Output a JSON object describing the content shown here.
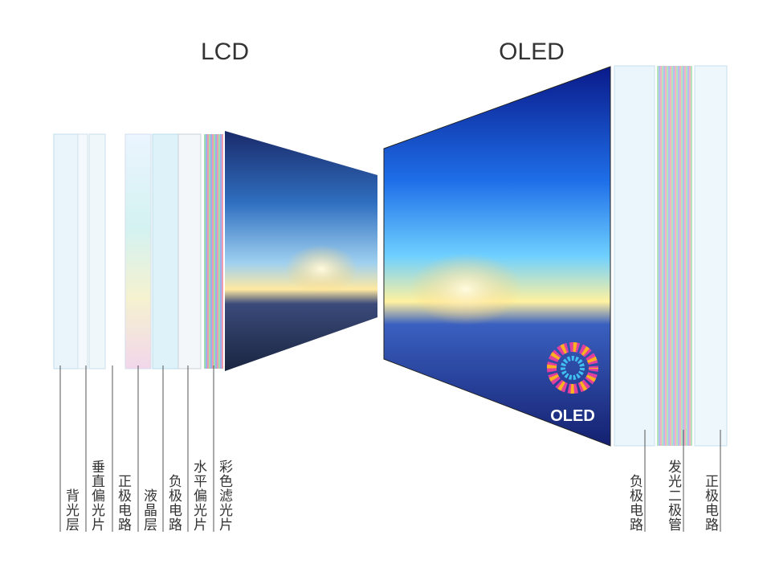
{
  "lcd": {
    "title": "LCD",
    "layers": [
      "背光层",
      "垂直偏光片",
      "正极电路",
      "液晶层",
      "负极电路",
      "水平偏光片",
      "彩色滤光片"
    ]
  },
  "oled": {
    "title": "OLED",
    "logo": "OLED",
    "layers": [
      "负极电路",
      "发光二极管",
      "正极电路"
    ]
  }
}
